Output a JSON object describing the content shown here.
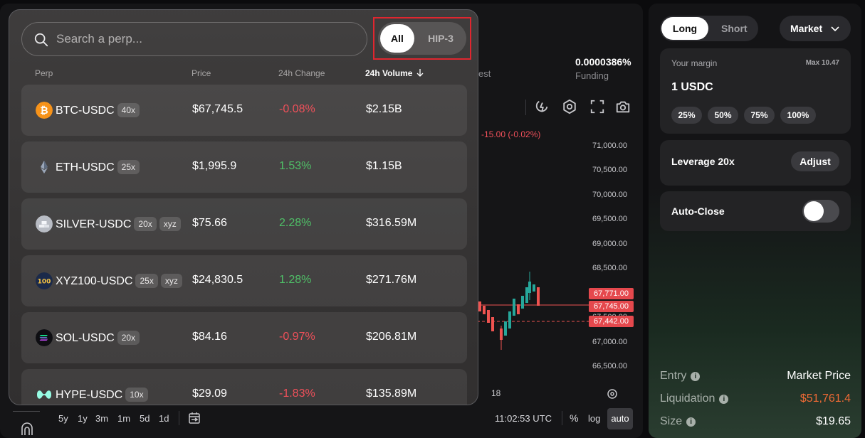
{
  "chart_header": {
    "stat_partial_label": "est",
    "funding_value": "0.0000386%",
    "funding_label": "Funding"
  },
  "chart": {
    "change_text": "-15.00 (-0.02%)",
    "y_labels": [
      "71,000.00",
      "70,500.00",
      "70,000.00",
      "69,500.00",
      "69,000.00",
      "68,500.00",
      "67,500.00",
      "67,000.00",
      "66,500.00"
    ],
    "price_tags": [
      "67,771.00",
      "67,745.00",
      "67,442.00"
    ],
    "x_label": "18",
    "colors": {
      "up": "#26a69a",
      "down": "#ef5350",
      "tag": "#e5484d"
    }
  },
  "bottom_bar": {
    "periods": [
      "5y",
      "1y",
      "3m",
      "1m",
      "5d",
      "1d"
    ],
    "time": "11:02:53 UTC",
    "percent_label": "%",
    "log_label": "log",
    "auto_label": "auto"
  },
  "selector": {
    "search_placeholder": "Search a perp...",
    "filter_all": "All",
    "filter_hip3": "HIP-3",
    "columns": {
      "perp": "Perp",
      "price": "Price",
      "change": "24h Change",
      "volume": "24h Volume"
    },
    "rows": [
      {
        "symbol": "BTC-USDC",
        "leverage": "40x",
        "tag": "",
        "price": "$67,745.5",
        "change": "-0.08%",
        "volume": "$2.15B",
        "icon": "bitcoin-icon"
      },
      {
        "symbol": "ETH-USDC",
        "leverage": "25x",
        "tag": "",
        "price": "$1,995.9",
        "change": "1.53%",
        "volume": "$1.15B",
        "icon": "ethereum-icon"
      },
      {
        "symbol": "SILVER-USDC",
        "leverage": "20x",
        "tag": "xyz",
        "price": "$75.66",
        "change": "2.28%",
        "volume": "$316.59M",
        "icon": "silver-icon"
      },
      {
        "symbol": "XYZ100-USDC",
        "leverage": "25x",
        "tag": "xyz",
        "price": "$24,830.5",
        "change": "1.28%",
        "volume": "$271.76M",
        "icon": "xyz100-icon"
      },
      {
        "symbol": "SOL-USDC",
        "leverage": "20x",
        "tag": "",
        "price": "$84.16",
        "change": "-0.97%",
        "volume": "$206.81M",
        "icon": "solana-icon"
      },
      {
        "symbol": "HYPE-USDC",
        "leverage": "10x",
        "tag": "",
        "price": "$29.09",
        "change": "-1.83%",
        "volume": "$135.89M",
        "icon": "hyperliquid-icon"
      }
    ],
    "colors": {
      "positive": "#4fbf67",
      "negative": "#f0505a"
    }
  },
  "order": {
    "tab_long": "Long",
    "tab_short": "Short",
    "order_type": "Market",
    "margin_label": "Your margin",
    "margin_max": "Max 10.47",
    "margin_value": "1 USDC",
    "pct_options": [
      "25%",
      "50%",
      "75%",
      "100%"
    ],
    "leverage_label": "Leverage 20x",
    "adjust_label": "Adjust",
    "auto_close_label": "Auto-Close",
    "entry_label": "Entry",
    "entry_value": "Market Price",
    "liquidation_label": "Liquidation",
    "liquidation_value": "$51,761.4",
    "size_label": "Size",
    "size_value": "$19.65",
    "info_glyph": "i",
    "colors": {
      "liquidation": "#ef6a35"
    }
  }
}
